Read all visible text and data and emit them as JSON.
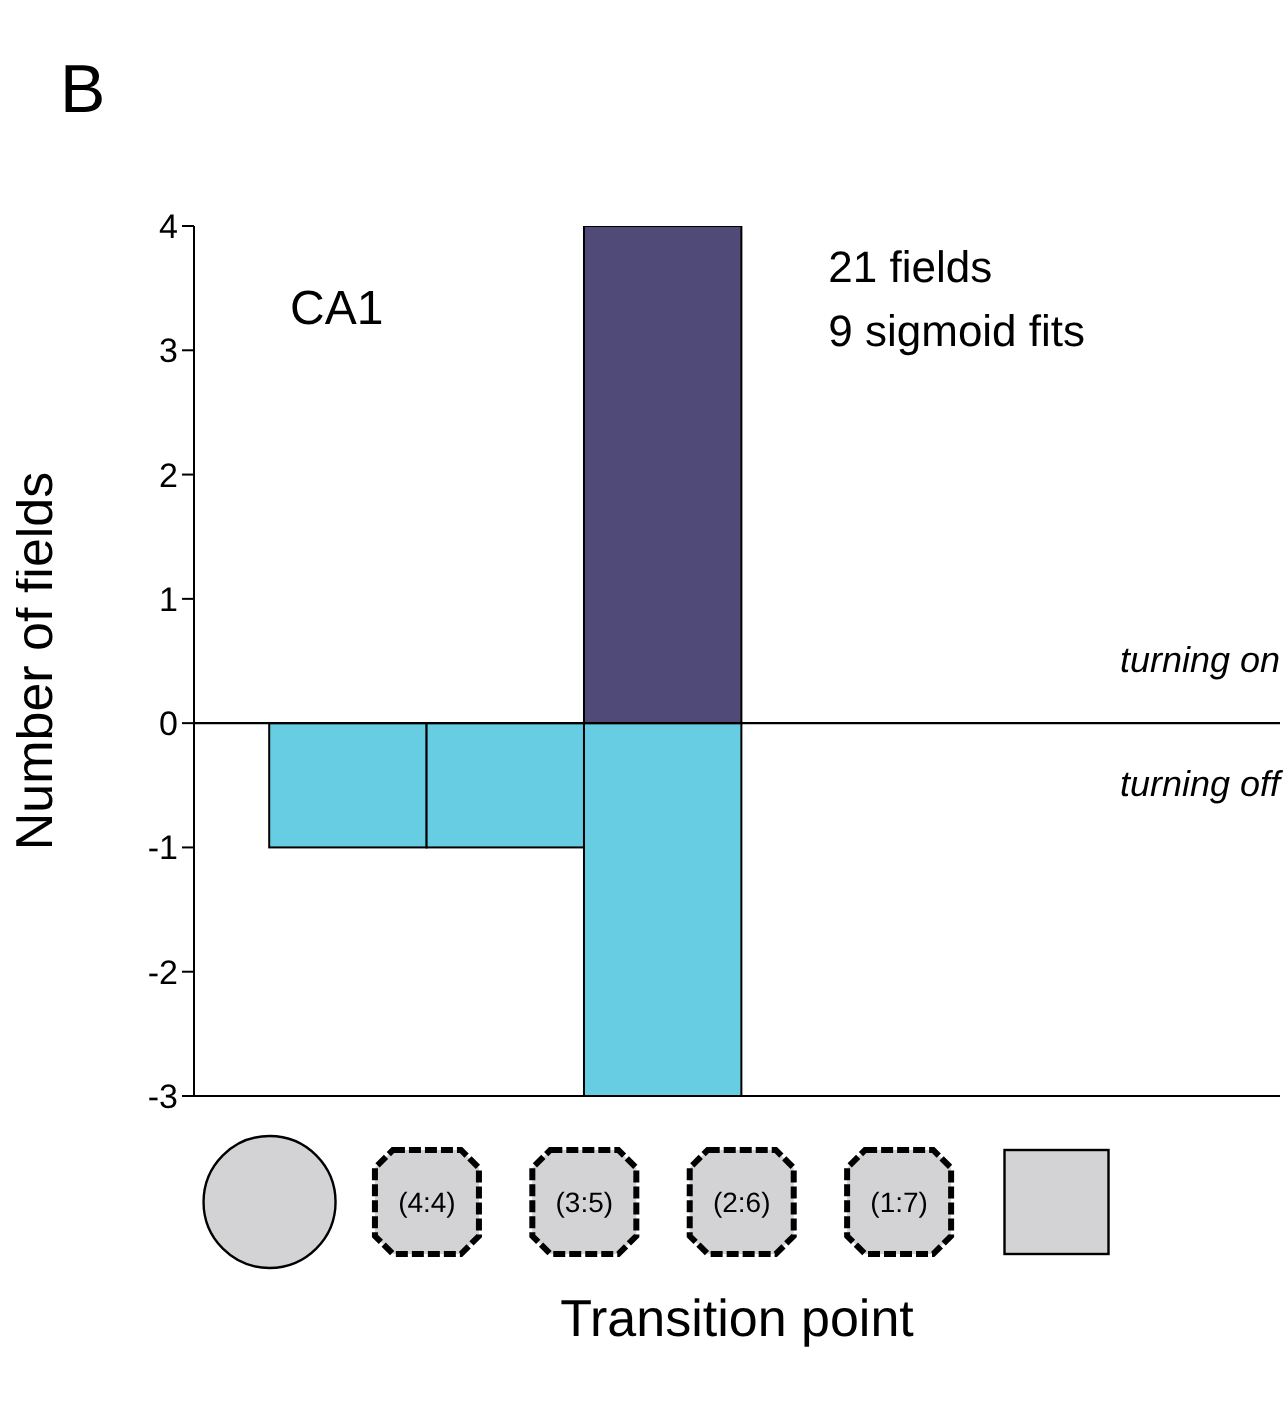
{
  "chart_data": {
    "type": "bar",
    "stacked": true,
    "xlabel": "Transition point",
    "ylabel": "Number of fields",
    "annotations": [
      "B",
      "CA1",
      "21 fields",
      "9 sigmoid fits"
    ],
    "categories": [
      null,
      null,
      "(4:4)",
      null,
      "(3:5)",
      null,
      "(2:6)",
      null,
      "(1:7)",
      null,
      null
    ],
    "ylim": [
      -3,
      4
    ],
    "yticks": [
      -3,
      -2,
      -1,
      0,
      1,
      2,
      3,
      4
    ],
    "ref_lines": [
      {
        "axis": "y",
        "value": 0,
        "color": "#000000"
      }
    ],
    "series": [
      {
        "name": "turning on",
        "color": "#4f4a78",
        "values": [
          null,
          null,
          null,
          null,
          null,
          4,
          null,
          null,
          null,
          null,
          null
        ]
      },
      {
        "name": "turning off",
        "color": "#66cde3",
        "values": [
          null,
          -1,
          null,
          -1,
          null,
          -3,
          null,
          null,
          null,
          null,
          null
        ]
      }
    ]
  }
}
